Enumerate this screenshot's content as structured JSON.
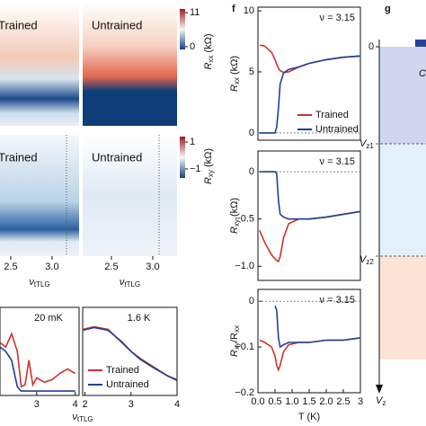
{
  "chart_data": [
    {
      "type": "line",
      "annotation": "ν = 3.15",
      "ylabel": [
        "R",
        "xx",
        " (kΩ)"
      ],
      "legend": "lower right",
      "xlim": [
        0,
        3
      ],
      "ylim": [
        -0.6,
        10.3
      ],
      "yticks": [
        0,
        5,
        10
      ],
      "x": [
        0.05,
        0.2,
        0.4,
        0.5,
        0.55,
        0.6,
        0.65,
        0.75,
        0.9,
        1.2,
        1.5,
        2.0,
        2.5,
        3.0
      ],
      "series": [
        {
          "name": "Trained",
          "color": "#d0312d",
          "values": [
            7.2,
            7.1,
            6.6,
            6.0,
            5.6,
            5.3,
            5.1,
            4.95,
            5.0,
            5.4,
            5.7,
            6.0,
            6.2,
            6.3
          ]
        },
        {
          "name": "Untrained",
          "color": "#1f3f99",
          "values": [
            0,
            0,
            0,
            0,
            0.5,
            2.0,
            4.0,
            4.9,
            5.2,
            5.4,
            5.7,
            6.0,
            6.2,
            6.3
          ]
        }
      ]
    },
    {
      "type": "line",
      "annotation": "ν = 3.15",
      "ylabel": [
        "R",
        "xy",
        " (kΩ)"
      ],
      "xlim": [
        0,
        3
      ],
      "ylim": [
        -1.15,
        0.22
      ],
      "yticks": [
        0,
        {
          "value": -0.5,
          "label": "−0.5"
        },
        {
          "value": -1,
          "label": "−1.0"
        }
      ],
      "x": [
        0.05,
        0.2,
        0.4,
        0.5,
        0.55,
        0.6,
        0.65,
        0.75,
        0.9,
        1.2,
        1.5,
        2.0,
        2.5,
        3.0
      ],
      "series": [
        {
          "name": "Trained",
          "color": "#d0312d",
          "values": [
            -0.62,
            -0.75,
            -0.88,
            -0.92,
            -0.94,
            -0.95,
            -0.9,
            -0.7,
            -0.55,
            -0.5,
            -0.5,
            -0.48,
            -0.45,
            -0.42
          ]
        },
        {
          "name": "Untrained",
          "color": "#1f3f99",
          "values": [
            0,
            0,
            0,
            0,
            -0.02,
            -0.3,
            -0.45,
            -0.48,
            -0.5,
            -0.5,
            -0.5,
            -0.48,
            -0.45,
            -0.42
          ]
        }
      ]
    },
    {
      "type": "line",
      "annotation": "ν = 3.15",
      "ylabel": [
        "R",
        "xy",
        "/R",
        "xx"
      ],
      "xlabel": "T (K)",
      "xlim": [
        0,
        3
      ],
      "ylim": [
        -0.2,
        0.026
      ],
      "xticks": [
        {
          "value": 0,
          "label": "0.0"
        },
        0.5,
        {
          "value": 1,
          "label": "1.0"
        },
        1.5,
        {
          "value": 2,
          "label": "2.0"
        },
        2.5,
        3
      ],
      "yticks": [
        0,
        {
          "value": -0.1,
          "label": "−0.1"
        },
        {
          "value": -0.2,
          "label": "−0.2"
        }
      ],
      "x": [
        0.05,
        0.2,
        0.4,
        0.5,
        0.55,
        0.6,
        0.65,
        0.75,
        0.9,
        1.2,
        1.5,
        2.0,
        2.5,
        3.0
      ],
      "series": [
        {
          "name": "Trained",
          "color": "#d0312d",
          "values": [
            -0.085,
            -0.09,
            -0.1,
            -0.12,
            -0.14,
            -0.15,
            -0.14,
            -0.11,
            -0.095,
            -0.09,
            -0.09,
            -0.085,
            -0.085,
            -0.08
          ]
        },
        {
          "name": "Untrained",
          "color": "#1f3f99",
          "values": [
            null,
            null,
            null,
            -0.01,
            -0.02,
            -0.08,
            -0.1,
            -0.095,
            -0.09,
            -0.09,
            -0.09,
            -0.085,
            -0.085,
            -0.08
          ]
        }
      ]
    },
    {
      "type": "line",
      "annotation": "20 mK",
      "xlim": [
        2.05,
        4.1
      ],
      "ylim": [
        0,
        1
      ],
      "xticks": [
        3,
        4
      ],
      "x": [
        2.05,
        2.2,
        2.35,
        2.5,
        2.6,
        2.7,
        2.8,
        2.9,
        3.0,
        3.2,
        3.4,
        3.6,
        3.8,
        4.0
      ],
      "series": [
        {
          "name": "Trained",
          "color": "#d0312d",
          "values": [
            0.6,
            0.55,
            0.7,
            0.5,
            0.1,
            0.12,
            0.4,
            0.12,
            0.2,
            0.15,
            0.18,
            0.25,
            0.3,
            0.25
          ]
        },
        {
          "name": "Untrained",
          "color": "#1f3f99",
          "values": [
            0.55,
            0.5,
            0.4,
            0.1,
            0.05,
            0.05,
            0.05,
            0.05,
            0.05,
            0.05,
            0.05,
            0.05,
            0.05,
            0.05
          ]
        }
      ]
    },
    {
      "type": "line",
      "annotation": "1.6 K",
      "legend": "lower left",
      "xlabel": [
        "ν",
        "tTLG"
      ],
      "xlim": [
        1.95,
        4
      ],
      "ylim": [
        0,
        1
      ],
      "xticks": [
        2,
        3,
        4
      ],
      "x": [
        1.95,
        2.2,
        2.5,
        2.8,
        3.0,
        3.2,
        3.5,
        3.8,
        4.0
      ],
      "series": [
        {
          "name": "Trained",
          "color": "#d0312d",
          "values": [
            0.75,
            0.78,
            0.75,
            0.6,
            0.5,
            0.42,
            0.32,
            0.22,
            0.18
          ]
        },
        {
          "name": "Untrained",
          "color": "#1f3f99",
          "values": [
            0.74,
            0.77,
            0.74,
            0.61,
            0.5,
            0.41,
            0.31,
            0.22,
            0.17
          ]
        }
      ]
    }
  ],
  "heatmaps": {
    "xlim": [
      2.37,
      3.33
    ],
    "xticks": [
      2.5,
      {
        "value": 3,
        "label": "3.0"
      }
    ],
    "xlabel": [
      "ν",
      "tTLG"
    ],
    "panels": [
      "Trained",
      "Untrained",
      "Trained",
      "Untrained"
    ]
  },
  "colorbars": [
    {
      "lim": [
        -0.9,
        12.2
      ],
      "ticks": [
        11,
        0
      ],
      "label": [
        "R",
        "xx",
        " (kΩ)"
      ]
    },
    {
      "lim": [
        -1.67,
        1.4
      ],
      "ticks": [
        1,
        {
          "value": -1,
          "label": "−1"
        }
      ],
      "label": [
        "R",
        "xy",
        " (kΩ)"
      ]
    }
  ],
  "diagram": {
    "panel_f": "f",
    "panel_g": "g",
    "zero": "0",
    "vz1": [
      "V",
      "z1"
    ],
    "vz2": [
      "V",
      "z2"
    ],
    "vz": [
      "V",
      "z"
    ],
    "region": "C"
  }
}
